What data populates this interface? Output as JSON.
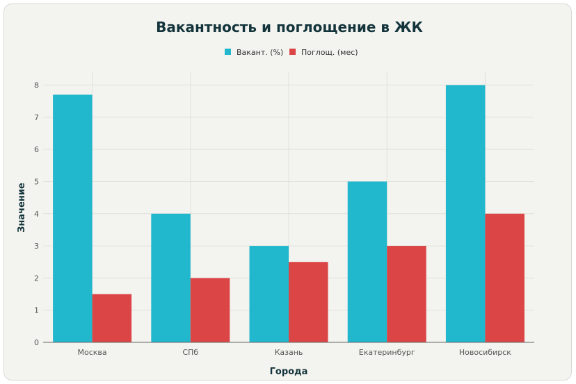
{
  "chart_data": {
    "type": "bar",
    "title": "Вакантность и поглощение в ЖК",
    "xlabel": "Города",
    "ylabel": "Значение",
    "categories": [
      "Москва",
      "СПб",
      "Казань",
      "Екатеринбург",
      "Новосибирск"
    ],
    "series": [
      {
        "name": "Вакант. (%)",
        "values": [
          7.7,
          4,
          3,
          5,
          8
        ],
        "color": "#21b8cd"
      },
      {
        "name": "Поглощ. (мес)",
        "values": [
          1.5,
          2,
          2.5,
          3,
          4
        ],
        "color": "#db4545"
      }
    ],
    "ylim": [
      0,
      8.4
    ],
    "yticks": [
      0,
      1,
      2,
      3,
      4,
      5,
      6,
      7,
      8
    ],
    "grid": true,
    "legend_position": "top-center"
  }
}
